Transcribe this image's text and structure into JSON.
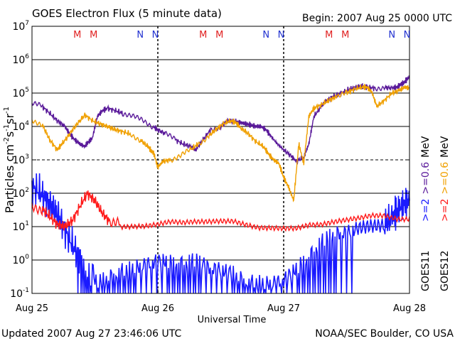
{
  "header": {
    "title": "GOES Electron Flux (5 minute data)",
    "begin": "Begin: 2007 Aug 25 0000 UTC"
  },
  "footer": {
    "updated": "Updated 2007 Aug 27 23:46:06 UTC",
    "credit": "NOAA/SEC Boulder, CO USA"
  },
  "colors": {
    "goes11_gt2": "#1a1aff",
    "goes11_gt06": "#5a1a9a",
    "goes12_gt2": "#ff1a1a",
    "goes12_gt06": "#f0a000",
    "marker_M": "#e02020",
    "marker_N": "#2030d0"
  },
  "chart_data": {
    "type": "line",
    "log_scale_y": true,
    "ylim": [
      0.1,
      10000000
    ],
    "y_tick_labels": [
      {
        "base": "10",
        "exp": "7",
        "value": 10000000
      },
      {
        "base": "10",
        "exp": "6",
        "value": 1000000
      },
      {
        "base": "10",
        "exp": "5",
        "value": 100000
      },
      {
        "base": "10",
        "exp": "4",
        "value": 10000
      },
      {
        "base": "10",
        "exp": "3",
        "value": 1000
      },
      {
        "base": "10",
        "exp": "2",
        "value": 100
      },
      {
        "base": "10",
        "exp": "1",
        "value": 10
      },
      {
        "base": "10",
        "exp": "0",
        "value": 1
      },
      {
        "base": "10",
        "exp": "-1",
        "value": 0.1
      }
    ],
    "ylabel": {
      "prefix": "Particles cm",
      "exp1": "-2",
      "s": "s",
      "exp2": "-1",
      "sr": "sr",
      "exp3": "-1"
    },
    "xlabel": "Universal Time",
    "x_tick_labels": [
      "Aug 25",
      "Aug 26",
      "Aug 27",
      "Aug 28"
    ],
    "xlim": [
      "2007-08-25 00:00",
      "2007-08-28 00:00"
    ],
    "grid_lines": [
      10000000,
      1000000,
      100000,
      10000,
      100,
      10,
      1
    ],
    "dashed_grid_lines": [
      1000
    ],
    "day_dividers": [
      "2007-08-26 00:00",
      "2007-08-27 00:00"
    ],
    "markers": [
      {
        "label": "M",
        "day": 0.36
      },
      {
        "label": "M",
        "day": 0.49
      },
      {
        "label": "N",
        "day": 0.86
      },
      {
        "label": "N",
        "day": 0.98
      },
      {
        "label": "M",
        "day": 1.36
      },
      {
        "label": "M",
        "day": 1.49
      },
      {
        "label": "N",
        "day": 1.86
      },
      {
        "label": "N",
        "day": 1.98
      },
      {
        "label": "M",
        "day": 2.36
      },
      {
        "label": "M",
        "day": 2.49
      },
      {
        "label": "N",
        "day": 2.86
      },
      {
        "label": "N",
        "day": 2.98
      }
    ],
    "legend": {
      "goes11": {
        "label": "GOES11",
        "gt2": ">=2",
        "gt06": ">=0.6"
      },
      "goes12": {
        "label": "GOES12",
        "gt2": ">=2",
        "gt06": ">=0.6"
      },
      "unit": "MeV"
    },
    "series": [
      {
        "name": "GOES11 >=0.6 MeV",
        "color": "#5a1a9a",
        "x_days": [
          0,
          0.08,
          0.14,
          0.2,
          0.26,
          0.3,
          0.34,
          0.38,
          0.42,
          0.45,
          0.48,
          0.52,
          0.56,
          0.6,
          0.66,
          0.72,
          0.8,
          0.88,
          0.96,
          1.0,
          1.06,
          1.14,
          1.2,
          1.26,
          1.3,
          1.36,
          1.42,
          1.5,
          1.56,
          1.62,
          1.66,
          1.7,
          1.74,
          1.78,
          1.82,
          1.86,
          1.9,
          1.95,
          2.0,
          2.06,
          2.1,
          2.16,
          2.2,
          2.24,
          2.3,
          2.34,
          2.4,
          2.46,
          2.52,
          2.58,
          2.62,
          2.66,
          2.72,
          2.8,
          2.86,
          2.9,
          2.95,
          3.0
        ],
        "values": [
          50000,
          40000,
          25000,
          15000,
          10000,
          6000,
          4000,
          3000,
          2500,
          3500,
          4500,
          20000,
          30000,
          35000,
          30000,
          25000,
          20000,
          15000,
          10000,
          8000,
          6000,
          4000,
          3000,
          2500,
          2000,
          4000,
          8000,
          10000,
          15000,
          14000,
          13000,
          12000,
          11000,
          10000,
          10000,
          8000,
          5000,
          3000,
          2000,
          1300,
          900,
          1200,
          3000,
          20000,
          40000,
          60000,
          80000,
          100000,
          130000,
          150000,
          160000,
          150000,
          140000,
          150000,
          140000,
          150000,
          200000,
          300000
        ]
      },
      {
        "name": "GOES12 >=0.6 MeV",
        "color": "#f0a000",
        "x_days": [
          0,
          0.08,
          0.14,
          0.2,
          0.24,
          0.3,
          0.36,
          0.42,
          0.48,
          0.54,
          0.6,
          0.66,
          0.72,
          0.78,
          0.86,
          0.92,
          0.97,
          1.0,
          1.04,
          1.1,
          1.18,
          1.26,
          1.32,
          1.4,
          1.46,
          1.52,
          1.58,
          1.62,
          1.66,
          1.72,
          1.78,
          1.84,
          1.88,
          1.92,
          1.96,
          1.98,
          2.0,
          2.04,
          2.08,
          2.12,
          2.16,
          2.2,
          2.24,
          2.3,
          2.36,
          2.42,
          2.5,
          2.56,
          2.62,
          2.66,
          2.7,
          2.74,
          2.8,
          2.86,
          2.92,
          2.96,
          3.0
        ],
        "values": [
          15000,
          12000,
          4000,
          2000,
          3000,
          6000,
          12000,
          22000,
          15000,
          12000,
          10000,
          8000,
          7000,
          6000,
          4000,
          2500,
          1500,
          600,
          900,
          1000,
          1300,
          2000,
          3000,
          5000,
          8000,
          12000,
          15000,
          13000,
          9000,
          6000,
          3500,
          2500,
          1500,
          1000,
          800,
          500,
          300,
          150,
          60,
          3000,
          800,
          20000,
          35000,
          45000,
          60000,
          80000,
          100000,
          130000,
          150000,
          150000,
          110000,
          40000,
          60000,
          100000,
          120000,
          150000,
          140000
        ]
      },
      {
        "name": "GOES11 >=2 MeV",
        "color": "#1a1aff",
        "x_days": [
          0,
          0.06,
          0.12,
          0.18,
          0.24,
          0.3,
          0.36,
          0.42,
          0.5,
          0.6,
          0.7,
          0.8,
          0.9,
          1.0,
          1.1,
          1.2,
          1.3,
          1.4,
          1.5,
          1.6,
          1.7,
          1.8,
          1.9,
          2.0,
          2.1,
          2.2,
          2.3,
          2.4,
          2.5,
          2.6,
          2.7,
          2.8,
          2.86,
          2.9,
          2.95,
          3.0
        ],
        "values": [
          150,
          110,
          60,
          30,
          12,
          4,
          1.5,
          0.8,
          0.5,
          0.6,
          0.7,
          0.6,
          0.5,
          0.5,
          0.4,
          0.4,
          0.6,
          0.5,
          0.6,
          0.7,
          0.5,
          0.5,
          0.4,
          0.4,
          0.6,
          1.0,
          2.0,
          3.0,
          3.0,
          5.0,
          8.0,
          12,
          18,
          30,
          45,
          60
        ]
      },
      {
        "name": "GOES12 >=2 MeV",
        "color": "#ff1a1a",
        "x_days": [
          0,
          0.08,
          0.14,
          0.2,
          0.26,
          0.32,
          0.38,
          0.44,
          0.5,
          0.56,
          0.62,
          0.7,
          0.8,
          0.9,
          1.0,
          1.1,
          1.2,
          1.3,
          1.4,
          1.5,
          1.6,
          1.7,
          1.8,
          1.9,
          2.0,
          2.1,
          2.2,
          2.3,
          2.4,
          2.5,
          2.6,
          2.7,
          2.8,
          2.9,
          3.0
        ],
        "values": [
          40,
          35,
          20,
          12,
          10,
          15,
          40,
          100,
          60,
          25,
          14,
          12,
          11,
          10,
          10,
          11,
          10,
          11,
          12,
          14,
          16,
          14,
          12,
          12,
          11,
          10,
          11,
          10,
          11,
          12,
          14,
          18,
          20,
          18,
          20
        ]
      }
    ]
  }
}
